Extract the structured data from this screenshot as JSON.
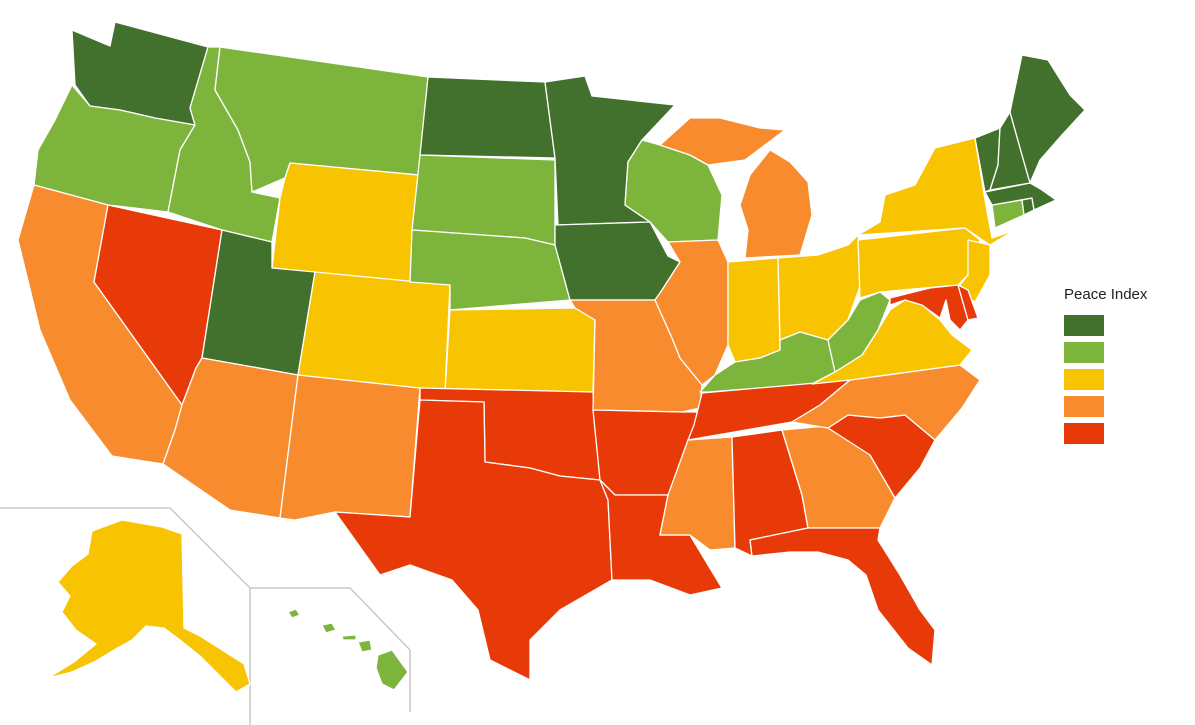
{
  "legend": {
    "title": "Peace Index",
    "classes": [
      {
        "class": "most_peaceful",
        "color": "#41712c"
      },
      {
        "class": "peaceful",
        "color": "#7db43c"
      },
      {
        "class": "moderate",
        "color": "#f8c300"
      },
      {
        "class": "less_peaceful",
        "color": "#f78b2d"
      },
      {
        "class": "least_peaceful",
        "color": "#e83a09"
      }
    ]
  },
  "states": [
    {
      "id": "WA",
      "class": "most_peaceful"
    },
    {
      "id": "OR",
      "class": "peaceful"
    },
    {
      "id": "CA",
      "class": "less_peaceful"
    },
    {
      "id": "NV",
      "class": "least_peaceful"
    },
    {
      "id": "ID",
      "class": "peaceful"
    },
    {
      "id": "MT",
      "class": "peaceful"
    },
    {
      "id": "WY",
      "class": "moderate"
    },
    {
      "id": "UT",
      "class": "most_peaceful"
    },
    {
      "id": "AZ",
      "class": "less_peaceful"
    },
    {
      "id": "CO",
      "class": "moderate"
    },
    {
      "id": "NM",
      "class": "less_peaceful"
    },
    {
      "id": "ND",
      "class": "most_peaceful"
    },
    {
      "id": "SD",
      "class": "peaceful"
    },
    {
      "id": "NE",
      "class": "peaceful"
    },
    {
      "id": "KS",
      "class": "moderate"
    },
    {
      "id": "OK",
      "class": "least_peaceful"
    },
    {
      "id": "TX",
      "class": "least_peaceful"
    },
    {
      "id": "MN",
      "class": "most_peaceful"
    },
    {
      "id": "IA",
      "class": "most_peaceful"
    },
    {
      "id": "MO",
      "class": "less_peaceful"
    },
    {
      "id": "AR",
      "class": "least_peaceful"
    },
    {
      "id": "LA",
      "class": "least_peaceful"
    },
    {
      "id": "WI",
      "class": "peaceful"
    },
    {
      "id": "IL",
      "class": "less_peaceful"
    },
    {
      "id": "MI",
      "class": "less_peaceful"
    },
    {
      "id": "IN",
      "class": "moderate"
    },
    {
      "id": "OH",
      "class": "moderate"
    },
    {
      "id": "KY",
      "class": "peaceful"
    },
    {
      "id": "TN",
      "class": "least_peaceful"
    },
    {
      "id": "MS",
      "class": "less_peaceful"
    },
    {
      "id": "AL",
      "class": "least_peaceful"
    },
    {
      "id": "GA",
      "class": "less_peaceful"
    },
    {
      "id": "FL",
      "class": "least_peaceful"
    },
    {
      "id": "SC",
      "class": "least_peaceful"
    },
    {
      "id": "NC",
      "class": "less_peaceful"
    },
    {
      "id": "VA",
      "class": "moderate"
    },
    {
      "id": "WV",
      "class": "peaceful"
    },
    {
      "id": "PA",
      "class": "moderate"
    },
    {
      "id": "NY",
      "class": "moderate"
    },
    {
      "id": "NJ",
      "class": "moderate"
    },
    {
      "id": "DE",
      "class": "least_peaceful"
    },
    {
      "id": "MD",
      "class": "least_peaceful"
    },
    {
      "id": "CT",
      "class": "peaceful"
    },
    {
      "id": "RI",
      "class": "most_peaceful"
    },
    {
      "id": "MA",
      "class": "most_peaceful"
    },
    {
      "id": "VT",
      "class": "most_peaceful"
    },
    {
      "id": "NH",
      "class": "most_peaceful"
    },
    {
      "id": "ME",
      "class": "most_peaceful"
    },
    {
      "id": "AK",
      "class": "moderate"
    },
    {
      "id": "HI",
      "class": "peaceful"
    }
  ]
}
